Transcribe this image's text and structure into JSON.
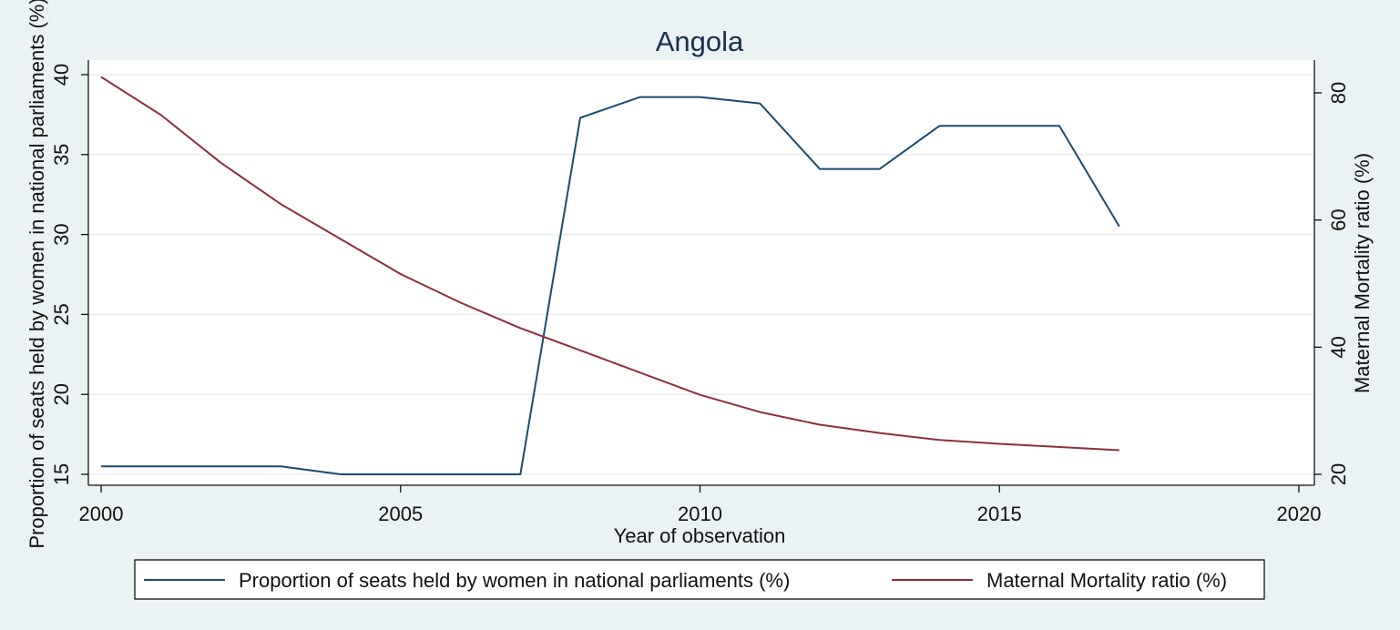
{
  "chart_data": {
    "type": "line",
    "title": "Angola",
    "xlabel": "Year of observation",
    "ylabel_left": "Proportion of seats held by women in national parliaments (%)",
    "ylabel_right": "Maternal Mortality ratio (%)",
    "xlim": [
      2000,
      2020
    ],
    "ylim_left": [
      15,
      40
    ],
    "ylim_right": [
      20,
      80
    ],
    "xticks": [
      2000,
      2005,
      2010,
      2015,
      2020
    ],
    "yticks_left": [
      15,
      20,
      25,
      30,
      35,
      40
    ],
    "yticks_right": [
      20,
      40,
      60,
      80
    ],
    "grid": true,
    "legend_position": "bottom",
    "x": [
      2000,
      2001,
      2002,
      2003,
      2004,
      2005,
      2006,
      2007,
      2008,
      2009,
      2010,
      2011,
      2012,
      2013,
      2014,
      2015,
      2016,
      2017
    ],
    "series": [
      {
        "name": "Proportion of seats held by women in national parliaments (%)",
        "axis": "left",
        "color": "#1a4a6e",
        "values": [
          15.5,
          15.5,
          15.5,
          15.5,
          15.0,
          15.0,
          15.0,
          15.0,
          37.3,
          38.6,
          38.6,
          38.2,
          34.1,
          34.1,
          36.8,
          36.8,
          36.8,
          30.5
        ]
      },
      {
        "name": "Maternal Mortality ratio (%)",
        "axis": "right",
        "color": "#8e2f3a",
        "values": [
          82.5,
          76.5,
          69,
          62.5,
          57,
          51.5,
          47,
          43,
          39.5,
          36,
          32.5,
          29.8,
          27.8,
          26.5,
          25.4,
          24.8,
          24.3,
          23.8
        ]
      }
    ]
  }
}
